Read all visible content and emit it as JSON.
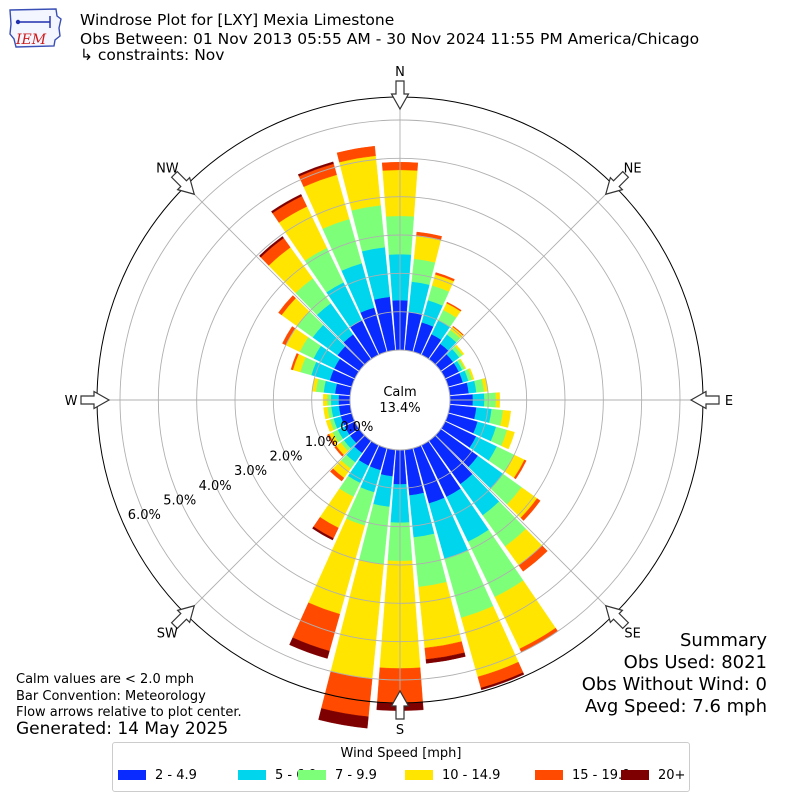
{
  "header": {
    "title": "Windrose Plot for [LXY] Mexia Limestone",
    "subtitle": "Obs Between: 01 Nov 2013 05:55 AM - 30 Nov 2024 11:55 PM America/Chicago",
    "constraints": "↳ constraints: Nov"
  },
  "logo": {
    "text": "IEM"
  },
  "summary": {
    "heading": "Summary",
    "obs_used": "Obs Used: 8021",
    "obs_without_wind": "Obs Without Wind: 0",
    "avg_speed": "Avg Speed: 7.6 mph"
  },
  "notes": {
    "calm_def": "Calm values are < 2.0 mph",
    "convention": "Bar Convention: Meteorology",
    "arrows": "Flow arrows relative to plot center.",
    "generated": "Generated: 14 May 2025"
  },
  "chart_data": {
    "type": "windrose",
    "title": "Windrose Plot for [LXY] Mexia Limestone",
    "calm": {
      "label": "Calm",
      "value": "13.4%"
    },
    "radial_ticks": [
      "0.0%",
      "1.0%",
      "2.0%",
      "3.0%",
      "4.0%",
      "5.0%",
      "6.0%"
    ],
    "radial_values": [
      0,
      1,
      2,
      3,
      4,
      5,
      6
    ],
    "cardinal_labels": [
      {
        "name": "N",
        "angle": 0
      },
      {
        "name": "NE",
        "angle": 45
      },
      {
        "name": "E",
        "angle": 90
      },
      {
        "name": "SE",
        "angle": 135
      },
      {
        "name": "S",
        "angle": 180
      },
      {
        "name": "SW",
        "angle": 225
      },
      {
        "name": "W",
        "angle": 270
      },
      {
        "name": "NW",
        "angle": 315
      }
    ],
    "legend_title": "Wind Speed [mph]",
    "bins": [
      {
        "label": "2 - 4.9",
        "color": "#0a2bff"
      },
      {
        "label": "5 - 6.9",
        "color": "#00d5ee"
      },
      {
        "label": "7 - 9.9",
        "color": "#7dff7a"
      },
      {
        "label": "10 - 14.9",
        "color": "#ffe500"
      },
      {
        "label": "15 - 19.9",
        "color": "#ff4a00"
      },
      {
        "label": "20+",
        "color": "#7f0000"
      }
    ],
    "directions": [
      {
        "dir": 0,
        "values": [
          1.3,
          1.2,
          1.0,
          1.2,
          0.2,
          0.0
        ]
      },
      {
        "dir": 10,
        "values": [
          1.0,
          0.8,
          0.6,
          0.6,
          0.1,
          0.0
        ]
      },
      {
        "dir": 20,
        "values": [
          0.8,
          0.6,
          0.4,
          0.3,
          0.05,
          0.0
        ]
      },
      {
        "dir": 30,
        "values": [
          0.6,
          0.4,
          0.3,
          0.2,
          0.03,
          0.0
        ]
      },
      {
        "dir": 40,
        "values": [
          0.5,
          0.3,
          0.15,
          0.1,
          0.02,
          0.0
        ]
      },
      {
        "dir": 50,
        "values": [
          0.4,
          0.2,
          0.1,
          0.05,
          0.0,
          0.0
        ]
      },
      {
        "dir": 60,
        "values": [
          0.4,
          0.1,
          0.07,
          0.03,
          0.0,
          0.0
        ]
      },
      {
        "dir": 70,
        "values": [
          0.4,
          0.15,
          0.1,
          0.05,
          0.0,
          0.0
        ]
      },
      {
        "dir": 80,
        "values": [
          0.5,
          0.2,
          0.2,
          0.1,
          0.0,
          0.0
        ]
      },
      {
        "dir": 90,
        "values": [
          0.6,
          0.3,
          0.3,
          0.1,
          0.0,
          0.0
        ]
      },
      {
        "dir": 100,
        "values": [
          0.7,
          0.4,
          0.3,
          0.2,
          0.0,
          0.0
        ]
      },
      {
        "dir": 110,
        "values": [
          0.8,
          0.5,
          0.3,
          0.2,
          0.0,
          0.0
        ]
      },
      {
        "dir": 120,
        "values": [
          0.9,
          0.6,
          0.5,
          0.3,
          0.05,
          0.0
        ]
      },
      {
        "dir": 130,
        "values": [
          1.2,
          0.8,
          0.6,
          0.5,
          0.1,
          0.0
        ]
      },
      {
        "dir": 140,
        "values": [
          1.4,
          1.0,
          1.0,
          0.6,
          0.2,
          0.0
        ]
      },
      {
        "dir": 150,
        "values": [
          1.5,
          1.3,
          1.6,
          1.5,
          0.1,
          0.0
        ]
      },
      {
        "dir": 160,
        "values": [
          1.5,
          1.5,
          1.6,
          1.6,
          0.3,
          0.05
        ]
      },
      {
        "dir": 170,
        "values": [
          1.2,
          1.1,
          1.3,
          1.6,
          0.3,
          0.1
        ]
      },
      {
        "dir": 180,
        "values": [
          0.9,
          1.0,
          1.0,
          2.8,
          0.9,
          0.2
        ]
      },
      {
        "dir": 190,
        "values": [
          0.7,
          0.8,
          1.5,
          3.0,
          1.0,
          0.3
        ]
      },
      {
        "dir": 200,
        "values": [
          0.6,
          0.6,
          0.9,
          2.4,
          1.0,
          0.2
        ]
      },
      {
        "dir": 210,
        "values": [
          0.6,
          0.5,
          0.4,
          0.9,
          0.3,
          0.05
        ]
      },
      {
        "dir": 220,
        "values": [
          0.4,
          0.3,
          0.2,
          0.3,
          0.1,
          0.0
        ]
      },
      {
        "dir": 230,
        "values": [
          0.3,
          0.2,
          0.1,
          0.15,
          0.05,
          0.0
        ]
      },
      {
        "dir": 240,
        "values": [
          0.3,
          0.2,
          0.15,
          0.1,
          0.05,
          0.0
        ]
      },
      {
        "dir": 250,
        "values": [
          0.3,
          0.2,
          0.1,
          0.1,
          0.0,
          0.0
        ]
      },
      {
        "dir": 260,
        "values": [
          0.3,
          0.2,
          0.1,
          0.1,
          0.0,
          0.0
        ]
      },
      {
        "dir": 270,
        "values": [
          0.3,
          0.2,
          0.1,
          0.1,
          0.0,
          0.0
        ]
      },
      {
        "dir": 280,
        "values": [
          0.4,
          0.3,
          0.2,
          0.1,
          0.0,
          0.0
        ]
      },
      {
        "dir": 290,
        "values": [
          0.6,
          0.5,
          0.3,
          0.2,
          0.05,
          0.0
        ]
      },
      {
        "dir": 300,
        "values": [
          0.6,
          0.6,
          0.4,
          0.4,
          0.1,
          0.0
        ]
      },
      {
        "dir": 310,
        "values": [
          0.7,
          0.8,
          0.5,
          0.5,
          0.1,
          0.0
        ]
      },
      {
        "dir": 320,
        "values": [
          0.8,
          1.0,
          0.8,
          1.0,
          0.3,
          0.05
        ]
      },
      {
        "dir": 330,
        "values": [
          1.0,
          1.1,
          1.0,
          1.2,
          0.3,
          0.05
        ]
      },
      {
        "dir": 340,
        "values": [
          1.2,
          1.2,
          1.2,
          1.2,
          0.3,
          0.05
        ]
      },
      {
        "dir": 350,
        "values": [
          1.4,
          1.3,
          1.1,
          1.3,
          0.25,
          0.0
        ]
      }
    ]
  }
}
